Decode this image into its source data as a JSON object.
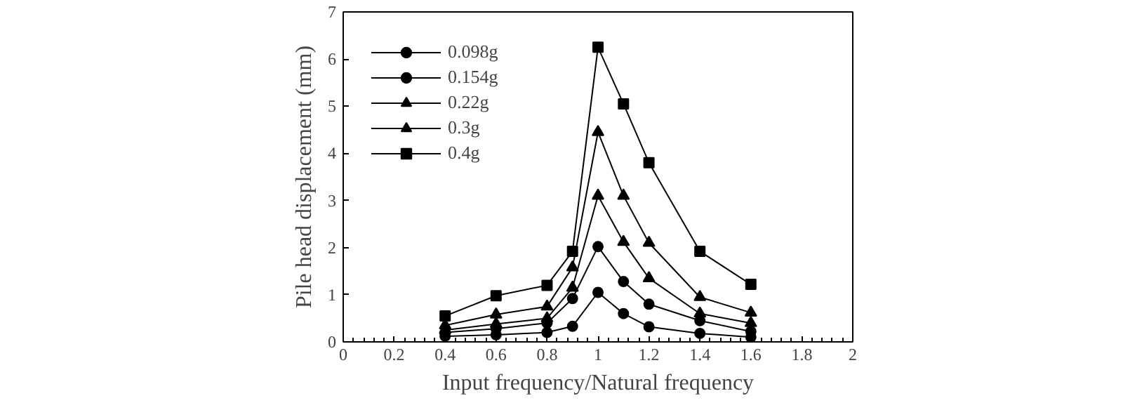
{
  "chart_data": {
    "type": "line",
    "xlabel": "Input frequency/Natural frequency",
    "ylabel": "Pile head displacement (mm)",
    "x": [
      0.4,
      0.6,
      0.8,
      0.9,
      1.0,
      1.1,
      1.2,
      1.4,
      1.6
    ],
    "xlim": [
      0,
      2
    ],
    "xticks": [
      0,
      0.2,
      0.4,
      0.6,
      0.8,
      1,
      1.2,
      1.4,
      1.6,
      1.8,
      2
    ],
    "ylim": [
      0,
      7
    ],
    "yticks": [
      0,
      1,
      2,
      3,
      4,
      5,
      6,
      7
    ],
    "grid": false,
    "legend": "top left",
    "line_style": "solid",
    "series": [
      {
        "name": "0.098g",
        "color": "#000000",
        "marker": "circle",
        "values": [
          0.12,
          0.15,
          0.2,
          0.33,
          1.05,
          0.6,
          0.32,
          0.18,
          0.1
        ]
      },
      {
        "name": "0.154g",
        "color": "#000000",
        "marker": "circle",
        "values": [
          0.2,
          0.28,
          0.4,
          0.92,
          2.02,
          1.28,
          0.8,
          0.45,
          0.22
        ]
      },
      {
        "name": "0.22g",
        "color": "#000000",
        "marker": "triangle",
        "values": [
          0.25,
          0.38,
          0.5,
          1.15,
          3.1,
          2.12,
          1.35,
          0.6,
          0.4
        ]
      },
      {
        "name": "0.3g",
        "color": "#000000",
        "marker": "triangle",
        "values": [
          0.35,
          0.58,
          0.75,
          1.58,
          4.45,
          3.1,
          2.1,
          0.95,
          0.62
        ]
      },
      {
        "name": "0.4g",
        "color": "#000000",
        "marker": "square",
        "values": [
          0.55,
          0.98,
          1.2,
          1.92,
          6.25,
          5.05,
          3.8,
          1.92,
          1.22
        ]
      }
    ]
  }
}
